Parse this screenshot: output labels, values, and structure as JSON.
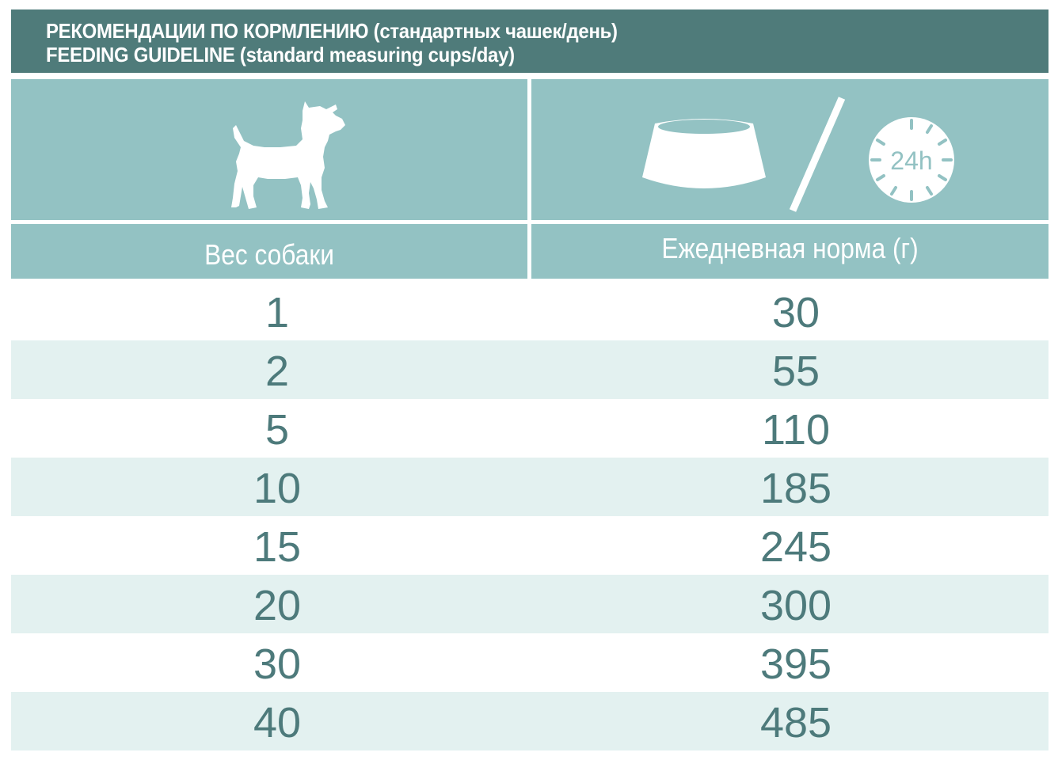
{
  "title": {
    "line_ru": "РЕКОМЕНДАЦИИ ПО КОРМЛЕНИЮ (стандартных чашек/день)",
    "line_en": "FEEDING GUIDELINE (standard measuring cups/day)"
  },
  "icons": {
    "left": "dog-icon",
    "right_bowl": "bowl-icon",
    "right_clock": "clock-24h-icon",
    "clock_label": "24h"
  },
  "columns": {
    "weight_header": "Вес собаки",
    "daily_header": "Ежедневная норма (г)"
  },
  "rows": [
    {
      "weight": "1",
      "daily": "30"
    },
    {
      "weight": "2",
      "daily": "55"
    },
    {
      "weight": "5",
      "daily": "110"
    },
    {
      "weight": "10",
      "daily": "185"
    },
    {
      "weight": "15",
      "daily": "245"
    },
    {
      "weight": "20",
      "daily": "300"
    },
    {
      "weight": "30",
      "daily": "395"
    },
    {
      "weight": "40",
      "daily": "485"
    }
  ],
  "colors": {
    "title_band": "#4f7b7a",
    "header_cells": "#93c2c3",
    "row_alt": "#e3f1f0",
    "value_text": "#4d7a7b"
  }
}
